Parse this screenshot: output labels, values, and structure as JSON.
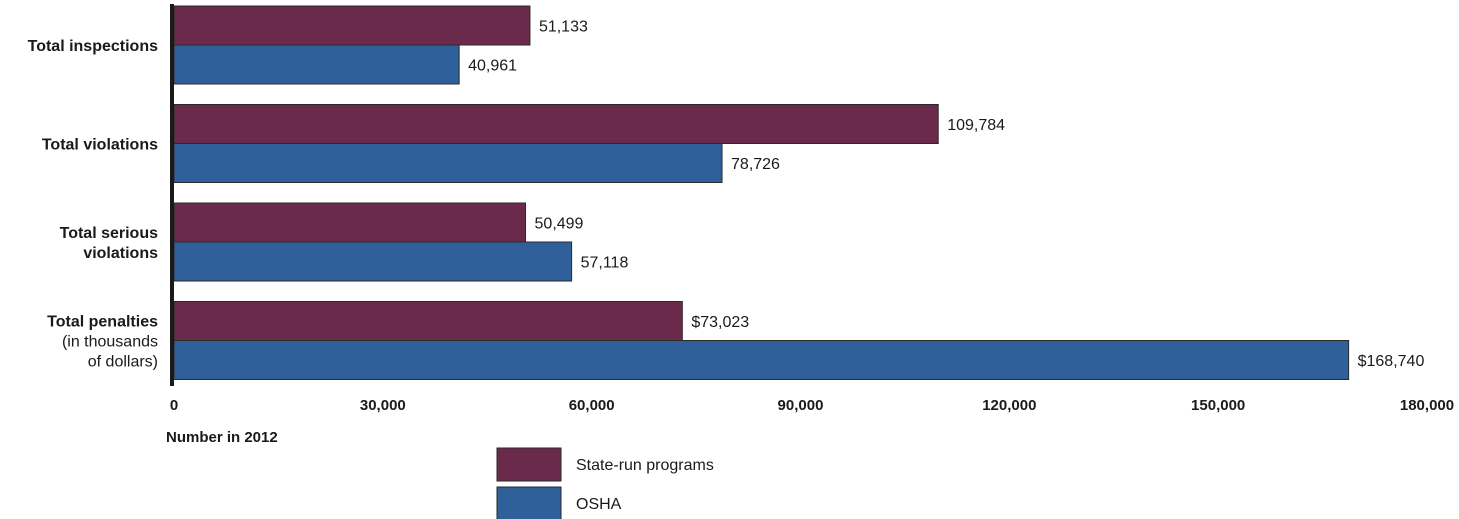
{
  "chart_data": {
    "type": "bar",
    "orientation": "horizontal",
    "categories": [
      {
        "lines": [
          "Total inspections"
        ]
      },
      {
        "lines": [
          "Total violations"
        ]
      },
      {
        "lines": [
          "Total serious",
          "violations"
        ]
      },
      {
        "lines": [
          "Total penalties",
          "(in thousands",
          "of dollars)"
        ]
      }
    ],
    "series": [
      {
        "name": "State-run programs",
        "color": "#6b2a4c",
        "values": [
          51133,
          109784,
          50499,
          73023
        ],
        "labels": [
          "51,133",
          "109,784",
          "50,499",
          "$73,023"
        ]
      },
      {
        "name": "OSHA",
        "color": "#30609a",
        "values": [
          40961,
          78726,
          57118,
          168740
        ],
        "labels": [
          "40,961",
          "78,726",
          "57,118",
          "$168,740"
        ]
      }
    ],
    "xlim": [
      0,
      180000
    ],
    "xticks": [
      0,
      30000,
      60000,
      90000,
      120000,
      150000,
      180000
    ],
    "xtick_labels": [
      "0",
      "30,000",
      "60,000",
      "90,000",
      "120,000",
      "150,000",
      "180,000"
    ],
    "xlabel": "Number in 2012",
    "legend_position": "bottom",
    "grid": false
  }
}
